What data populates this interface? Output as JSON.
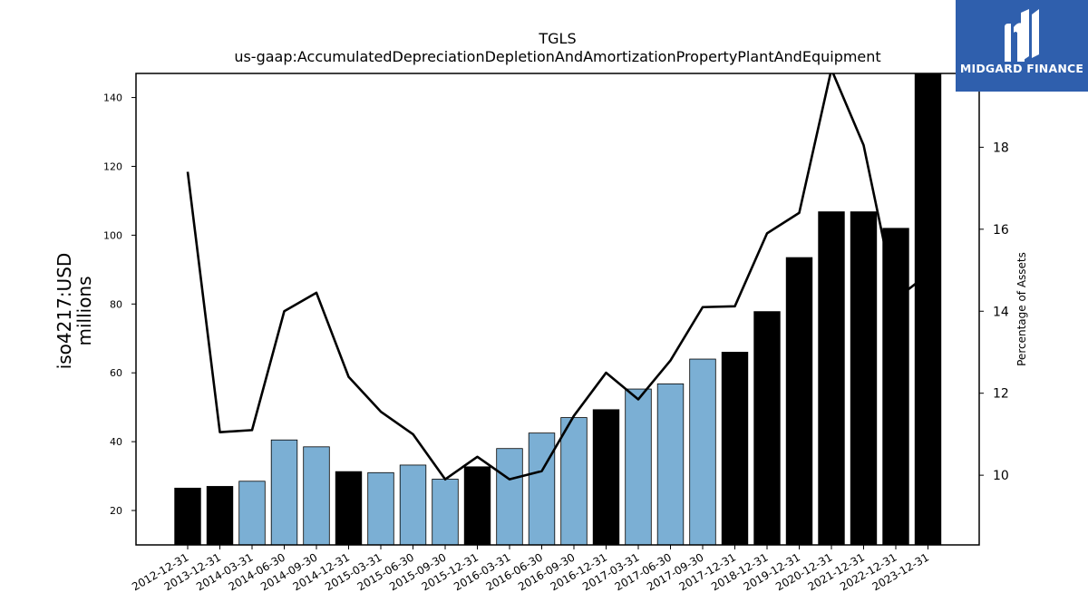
{
  "logo": {
    "text": "MIDGARD FINANCE"
  },
  "chart_data": {
    "type": "bar",
    "title": "TGLS",
    "subtitle": "us-gaap:AccumulatedDepreciationDepletionAndAmortizationPropertyPlantAndEquipment",
    "ylabel": "iso4217:USD\nmillions",
    "y2label": "Percentage of Assets",
    "ylim": [
      10,
      147
    ],
    "y2lim": [
      8.3,
      19.8
    ],
    "yticks": [
      20,
      40,
      60,
      80,
      100,
      120,
      140
    ],
    "y2ticks": [
      10,
      12,
      14,
      16,
      18
    ],
    "categories": [
      "2012-12-31",
      "2013-12-31",
      "2014-03-31",
      "2014-06-30",
      "2014-09-30",
      "2014-12-31",
      "2015-03-31",
      "2015-06-30",
      "2015-09-30",
      "2015-12-31",
      "2016-03-31",
      "2016-06-30",
      "2016-09-30",
      "2016-12-31",
      "2017-03-31",
      "2017-06-30",
      "2017-09-30",
      "2017-12-31",
      "2018-12-31",
      "2019-12-31",
      "2020-12-31",
      "2021-12-31",
      "2022-12-31",
      "2023-12-31"
    ],
    "series": [
      {
        "type": "bar",
        "values": [
          26.5,
          27.0,
          28.5,
          40.5,
          38.5,
          31.3,
          31.0,
          33.2,
          29.1,
          32.7,
          38.0,
          42.5,
          47.0,
          49.3,
          55.3,
          56.8,
          64.0,
          66.0,
          77.8,
          93.5,
          106.8,
          106.8,
          102.0,
          147.0
        ],
        "colors": [
          "#000000",
          "#000000",
          "#7bafd4",
          "#7bafd4",
          "#7bafd4",
          "#000000",
          "#7bafd4",
          "#7bafd4",
          "#7bafd4",
          "#000000",
          "#7bafd4",
          "#7bafd4",
          "#7bafd4",
          "#000000",
          "#7bafd4",
          "#7bafd4",
          "#7bafd4",
          "#000000",
          "#000000",
          "#000000",
          "#000000",
          "#000000",
          "#000000",
          "#000000"
        ]
      },
      {
        "type": "line",
        "axis": "right",
        "color": "#000000",
        "values": [
          17.4,
          11.05,
          11.1,
          14.0,
          14.45,
          12.4,
          11.55,
          11.0,
          9.9,
          10.45,
          9.9,
          10.1,
          11.45,
          12.5,
          11.85,
          12.8,
          14.1,
          14.12,
          15.9,
          16.4,
          19.9,
          18.05,
          14.3,
          14.9
        ]
      }
    ]
  }
}
